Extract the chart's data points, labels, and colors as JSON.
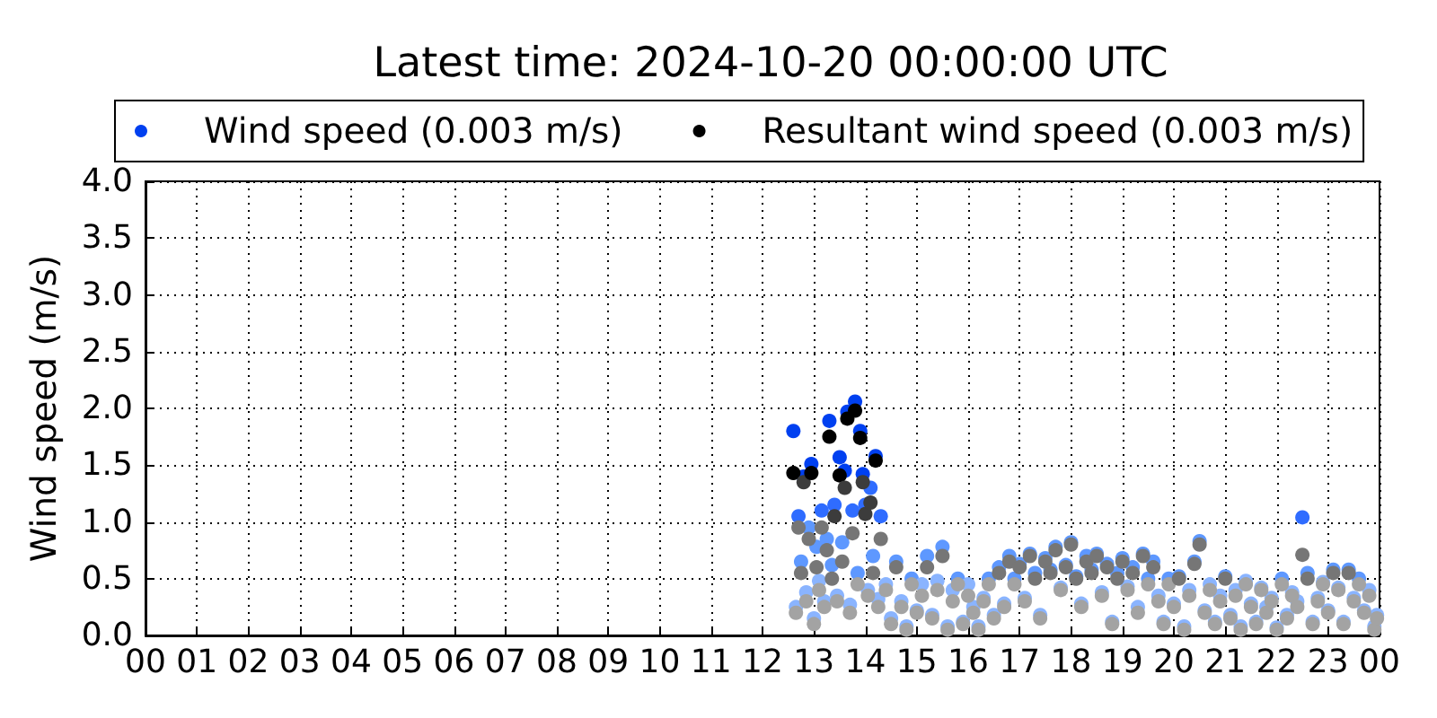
{
  "chart_data": {
    "type": "scatter",
    "title": "Latest time: 2024-10-20 00:00:00 UTC",
    "ylabel": "Wind speed (m/s)",
    "x": [
      12.6,
      12.65,
      12.7,
      12.75,
      12.8,
      12.85,
      12.9,
      12.95,
      13,
      13.05,
      13.1,
      13.15,
      13.2,
      13.25,
      13.3,
      13.35,
      13.4,
      13.45,
      13.5,
      13.55,
      13.6,
      13.65,
      13.7,
      13.75,
      13.8,
      13.85,
      13.9,
      13.95,
      14,
      14.05,
      14.1,
      14.15,
      14.2,
      14.25,
      14.3,
      14.4,
      14.5,
      14.6,
      14.7,
      14.8,
      14.9,
      15,
      15.1,
      15.2,
      15.3,
      15.4,
      15.5,
      15.6,
      15.7,
      15.8,
      15.9,
      16,
      16.1,
      16.2,
      16.3,
      16.4,
      16.5,
      16.6,
      16.7,
      16.8,
      16.9,
      17,
      17.1,
      17.2,
      17.3,
      17.4,
      17.5,
      17.6,
      17.7,
      17.8,
      17.9,
      18,
      18.1,
      18.2,
      18.3,
      18.4,
      18.5,
      18.6,
      18.7,
      18.8,
      18.9,
      19,
      19.1,
      19.2,
      19.3,
      19.4,
      19.5,
      19.6,
      19.7,
      19.8,
      19.9,
      20,
      20.1,
      20.2,
      20.3,
      20.4,
      20.5,
      20.6,
      20.7,
      20.8,
      20.9,
      21,
      21.1,
      21.2,
      21.3,
      21.4,
      21.5,
      21.6,
      21.7,
      21.8,
      21.9,
      22,
      22.1,
      22.2,
      22.3,
      22.4,
      22.5,
      22.6,
      22.7,
      22.8,
      22.9,
      23,
      23.1,
      23.2,
      23.3,
      23.4,
      23.5,
      23.6,
      23.7,
      23.8,
      23.9,
      23.95
    ],
    "series": [
      {
        "name": "Wind speed (0.003 m/s)",
        "color": "#0040f0",
        "values": [
          1.8,
          0.25,
          1.05,
          0.65,
          1.4,
          0.38,
          0.95,
          1.51,
          0.15,
          0.78,
          0.48,
          1.1,
          0.3,
          0.85,
          1.89,
          0.62,
          1.15,
          0.35,
          1.57,
          0.82,
          1.45,
          1.97,
          0.27,
          1.1,
          2.06,
          0.55,
          1.8,
          1.42,
          1.15,
          0.4,
          1.3,
          0.7,
          1.58,
          0.32,
          1.05,
          0.45,
          0.15,
          0.65,
          0.3,
          0.08,
          0.5,
          0.22,
          0.45,
          0.7,
          0.18,
          0.48,
          0.78,
          0.08,
          0.4,
          0.5,
          0.12,
          0.45,
          0.25,
          0.08,
          0.33,
          0.5,
          0.18,
          0.6,
          0.28,
          0.7,
          0.5,
          0.63,
          0.33,
          0.72,
          0.55,
          0.18,
          0.68,
          0.58,
          0.78,
          0.42,
          0.62,
          0.82,
          0.52,
          0.28,
          0.7,
          0.58,
          0.72,
          0.38,
          0.63,
          0.12,
          0.55,
          0.68,
          0.43,
          0.6,
          0.25,
          0.72,
          0.5,
          0.65,
          0.35,
          0.12,
          0.5,
          0.28,
          0.52,
          0.08,
          0.4,
          0.65,
          0.83,
          0.22,
          0.45,
          0.12,
          0.35,
          0.52,
          0.18,
          0.4,
          0.08,
          0.48,
          0.28,
          0.12,
          0.42,
          0.25,
          0.33,
          0.07,
          0.5,
          0.18,
          0.38,
          0.3,
          1.04,
          0.55,
          0.12,
          0.33,
          0.47,
          0.22,
          0.58,
          0.42,
          0.12,
          0.58,
          0.33,
          0.5,
          0.22,
          0.4,
          0.08,
          0.18
        ],
        "colors": [
          "#0040f0",
          "#8ab4ff",
          "#2f6cff",
          "#5e98ff",
          "#0040f0",
          "#8ab4ff",
          "#5e98ff",
          "#0040f0",
          "#8ab4ff",
          "#5e98ff",
          "#8ab4ff",
          "#2f6cff",
          "#8ab4ff",
          "#5e98ff",
          "#0040f0",
          "#5e98ff",
          "#2f6cff",
          "#8ab4ff",
          "#0040f0",
          "#5e98ff",
          "#0040f0",
          "#0040f0",
          "#8ab4ff",
          "#2f6cff",
          "#0040f0",
          "#5e98ff",
          "#0040f0",
          "#0040f0",
          "#2f6cff",
          "#8ab4ff",
          "#2f6cff",
          "#5e98ff",
          "#0040f0",
          "#8ab4ff",
          "#2f6cff",
          "#8ab4ff",
          "#8ab4ff",
          "#5e98ff",
          "#8ab4ff",
          "#8ab4ff",
          "#5e98ff",
          "#8ab4ff",
          "#8ab4ff",
          "#5e98ff",
          "#8ab4ff",
          "#8ab4ff",
          "#5e98ff",
          "#8ab4ff",
          "#8ab4ff",
          "#5e98ff",
          "#8ab4ff",
          "#8ab4ff",
          "#8ab4ff",
          "#8ab4ff",
          "#8ab4ff",
          "#5e98ff",
          "#8ab4ff",
          "#5e98ff",
          "#8ab4ff",
          "#5e98ff",
          "#5e98ff",
          "#5e98ff",
          "#8ab4ff",
          "#5e98ff",
          "#5e98ff",
          "#8ab4ff",
          "#5e98ff",
          "#5e98ff",
          "#5e98ff",
          "#8ab4ff",
          "#5e98ff",
          "#5e98ff",
          "#5e98ff",
          "#8ab4ff",
          "#5e98ff",
          "#5e98ff",
          "#5e98ff",
          "#8ab4ff",
          "#5e98ff",
          "#8ab4ff",
          "#5e98ff",
          "#5e98ff",
          "#8ab4ff",
          "#5e98ff",
          "#8ab4ff",
          "#5e98ff",
          "#5e98ff",
          "#5e98ff",
          "#8ab4ff",
          "#8ab4ff",
          "#5e98ff",
          "#8ab4ff",
          "#5e98ff",
          "#8ab4ff",
          "#8ab4ff",
          "#5e98ff",
          "#5e98ff",
          "#8ab4ff",
          "#8ab4ff",
          "#8ab4ff",
          "#8ab4ff",
          "#5e98ff",
          "#8ab4ff",
          "#8ab4ff",
          "#8ab4ff",
          "#8ab4ff",
          "#8ab4ff",
          "#8ab4ff",
          "#8ab4ff",
          "#8ab4ff",
          "#8ab4ff",
          "#8ab4ff",
          "#5e98ff",
          "#8ab4ff",
          "#8ab4ff",
          "#8ab4ff",
          "#2f6cff",
          "#5e98ff",
          "#8ab4ff",
          "#8ab4ff",
          "#8ab4ff",
          "#8ab4ff",
          "#5e98ff",
          "#8ab4ff",
          "#8ab4ff",
          "#5e98ff",
          "#8ab4ff",
          "#5e98ff",
          "#8ab4ff",
          "#8ab4ff",
          "#8ab4ff",
          "#8ab4ff"
        ]
      },
      {
        "name": "Resultant wind speed (0.003 m/s)",
        "color": "#000000",
        "values": [
          1.43,
          0.2,
          0.95,
          0.55,
          1.35,
          0.3,
          0.85,
          1.43,
          0.1,
          0.6,
          0.4,
          0.95,
          0.25,
          0.75,
          1.75,
          0.5,
          1.05,
          0.3,
          1.41,
          0.65,
          1.3,
          1.91,
          0.2,
          0.9,
          1.98,
          0.45,
          1.74,
          1.35,
          1.07,
          0.35,
          1.17,
          0.55,
          1.54,
          0.25,
          0.85,
          0.4,
          0.1,
          0.6,
          0.25,
          0.05,
          0.45,
          0.2,
          0.35,
          0.6,
          0.15,
          0.4,
          0.7,
          0.05,
          0.3,
          0.45,
          0.1,
          0.35,
          0.2,
          0.05,
          0.3,
          0.45,
          0.15,
          0.55,
          0.25,
          0.65,
          0.45,
          0.6,
          0.3,
          0.7,
          0.5,
          0.15,
          0.65,
          0.55,
          0.75,
          0.4,
          0.6,
          0.8,
          0.5,
          0.25,
          0.65,
          0.55,
          0.7,
          0.35,
          0.6,
          0.1,
          0.5,
          0.65,
          0.4,
          0.55,
          0.2,
          0.7,
          0.45,
          0.6,
          0.3,
          0.1,
          0.45,
          0.25,
          0.5,
          0.05,
          0.35,
          0.63,
          0.8,
          0.2,
          0.4,
          0.1,
          0.3,
          0.5,
          0.15,
          0.35,
          0.05,
          0.45,
          0.25,
          0.1,
          0.4,
          0.2,
          0.3,
          0.05,
          0.45,
          0.15,
          0.35,
          0.25,
          0.71,
          0.5,
          0.1,
          0.3,
          0.45,
          0.2,
          0.55,
          0.4,
          0.1,
          0.55,
          0.3,
          0.45,
          0.2,
          0.35,
          0.05,
          0.15
        ],
        "colors": [
          "#000000",
          "#a3a3a3",
          "#767676",
          "#767676",
          "#3c3c3c",
          "#a3a3a3",
          "#767676",
          "#000000",
          "#a3a3a3",
          "#767676",
          "#a3a3a3",
          "#767676",
          "#a3a3a3",
          "#767676",
          "#000000",
          "#767676",
          "#3c3c3c",
          "#a3a3a3",
          "#000000",
          "#767676",
          "#3c3c3c",
          "#000000",
          "#a3a3a3",
          "#767676",
          "#000000",
          "#a3a3a3",
          "#000000",
          "#3c3c3c",
          "#3c3c3c",
          "#a3a3a3",
          "#3c3c3c",
          "#767676",
          "#000000",
          "#a3a3a3",
          "#767676",
          "#a3a3a3",
          "#a3a3a3",
          "#767676",
          "#a3a3a3",
          "#a3a3a3",
          "#a3a3a3",
          "#a3a3a3",
          "#a3a3a3",
          "#767676",
          "#a3a3a3",
          "#a3a3a3",
          "#767676",
          "#a3a3a3",
          "#a3a3a3",
          "#a3a3a3",
          "#a3a3a3",
          "#a3a3a3",
          "#a3a3a3",
          "#a3a3a3",
          "#a3a3a3",
          "#a3a3a3",
          "#a3a3a3",
          "#767676",
          "#a3a3a3",
          "#767676",
          "#a3a3a3",
          "#767676",
          "#a3a3a3",
          "#767676",
          "#767676",
          "#a3a3a3",
          "#767676",
          "#767676",
          "#767676",
          "#a3a3a3",
          "#767676",
          "#767676",
          "#767676",
          "#a3a3a3",
          "#767676",
          "#767676",
          "#767676",
          "#a3a3a3",
          "#767676",
          "#a3a3a3",
          "#767676",
          "#767676",
          "#a3a3a3",
          "#767676",
          "#a3a3a3",
          "#767676",
          "#a3a3a3",
          "#767676",
          "#a3a3a3",
          "#a3a3a3",
          "#a3a3a3",
          "#a3a3a3",
          "#767676",
          "#a3a3a3",
          "#a3a3a3",
          "#767676",
          "#767676",
          "#a3a3a3",
          "#a3a3a3",
          "#a3a3a3",
          "#a3a3a3",
          "#767676",
          "#a3a3a3",
          "#a3a3a3",
          "#a3a3a3",
          "#a3a3a3",
          "#a3a3a3",
          "#a3a3a3",
          "#a3a3a3",
          "#a3a3a3",
          "#a3a3a3",
          "#a3a3a3",
          "#a3a3a3",
          "#a3a3a3",
          "#a3a3a3",
          "#a3a3a3",
          "#767676",
          "#767676",
          "#a3a3a3",
          "#a3a3a3",
          "#a3a3a3",
          "#a3a3a3",
          "#767676",
          "#a3a3a3",
          "#a3a3a3",
          "#767676",
          "#a3a3a3",
          "#a3a3a3",
          "#a3a3a3",
          "#a3a3a3",
          "#a3a3a3",
          "#a3a3a3"
        ]
      }
    ],
    "xlim": [
      0,
      24
    ],
    "ylim": [
      0,
      4
    ],
    "xticks": [
      {
        "value": 0,
        "label": "00"
      },
      {
        "value": 1,
        "label": "01"
      },
      {
        "value": 2,
        "label": "02"
      },
      {
        "value": 3,
        "label": "03"
      },
      {
        "value": 4,
        "label": "04"
      },
      {
        "value": 5,
        "label": "05"
      },
      {
        "value": 6,
        "label": "06"
      },
      {
        "value": 7,
        "label": "07"
      },
      {
        "value": 8,
        "label": "08"
      },
      {
        "value": 9,
        "label": "09"
      },
      {
        "value": 10,
        "label": "10"
      },
      {
        "value": 11,
        "label": "11"
      },
      {
        "value": 12,
        "label": "12"
      },
      {
        "value": 13,
        "label": "13"
      },
      {
        "value": 14,
        "label": "14"
      },
      {
        "value": 15,
        "label": "15"
      },
      {
        "value": 16,
        "label": "16"
      },
      {
        "value": 17,
        "label": "17"
      },
      {
        "value": 18,
        "label": "18"
      },
      {
        "value": 19,
        "label": "19"
      },
      {
        "value": 20,
        "label": "20"
      },
      {
        "value": 21,
        "label": "21"
      },
      {
        "value": 22,
        "label": "22"
      },
      {
        "value": 23,
        "label": "23"
      },
      {
        "value": 24,
        "label": "00"
      }
    ],
    "yticks": [
      {
        "value": 0,
        "label": "0.0"
      },
      {
        "value": 0.5,
        "label": "0.5"
      },
      {
        "value": 1,
        "label": "1.0"
      },
      {
        "value": 1.5,
        "label": "1.5"
      },
      {
        "value": 2,
        "label": "2.0"
      },
      {
        "value": 2.5,
        "label": "2.5"
      },
      {
        "value": 3,
        "label": "3.0"
      },
      {
        "value": 3.5,
        "label": "3.5"
      },
      {
        "value": 4,
        "label": "4.0"
      }
    ],
    "grid": true,
    "legend": "top",
    "marker": "circle"
  }
}
